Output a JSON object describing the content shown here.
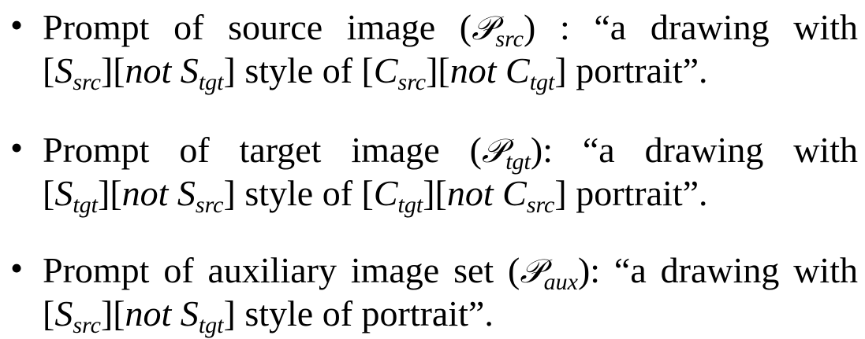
{
  "bullets": [
    {
      "glyph": "•",
      "line1": {
        "lead": "Prompt of source image (",
        "symbol": "𝒫",
        "symbol_sub": "src",
        "trail": ") :  “a drawing with"
      },
      "line2": {
        "open1": "[",
        "s1": "S",
        "s1_sub": "src",
        "mid1": "][",
        "not1": "not S",
        "not1_sub": "tgt",
        "close1": "]",
        "style_of": " style of ",
        "open2": "[",
        "c1": "C",
        "c1_sub": "src",
        "mid2": "][",
        "not2": "not C",
        "not2_sub": "tgt",
        "close2": "]",
        "tail": " portrait”."
      }
    },
    {
      "glyph": "•",
      "line1": {
        "lead": "Prompt of target image (",
        "symbol": "𝒫",
        "symbol_sub": "tgt",
        "trail": "):  “a drawing with"
      },
      "line2": {
        "open1": "[",
        "s1": "S",
        "s1_sub": "tgt",
        "mid1": "][",
        "not1": "not S",
        "not1_sub": "src",
        "close1": "]",
        "style_of": " style of ",
        "open2": "[",
        "c1": "C",
        "c1_sub": "tgt",
        "mid2": "][",
        "not2": "not C",
        "not2_sub": "src",
        "close2": "]",
        "tail": " portrait”."
      }
    },
    {
      "glyph": "•",
      "line1": {
        "lead": "Prompt of auxiliary image set (",
        "symbol": "𝒫",
        "symbol_sub": "aux",
        "trail": "): “a drawing with"
      },
      "line2": {
        "open1": "[",
        "s1": "S",
        "s1_sub": "src",
        "mid1": "][",
        "not1": "not S",
        "not1_sub": "tgt",
        "close1": "]",
        "tail": " style of portrait”."
      }
    }
  ]
}
